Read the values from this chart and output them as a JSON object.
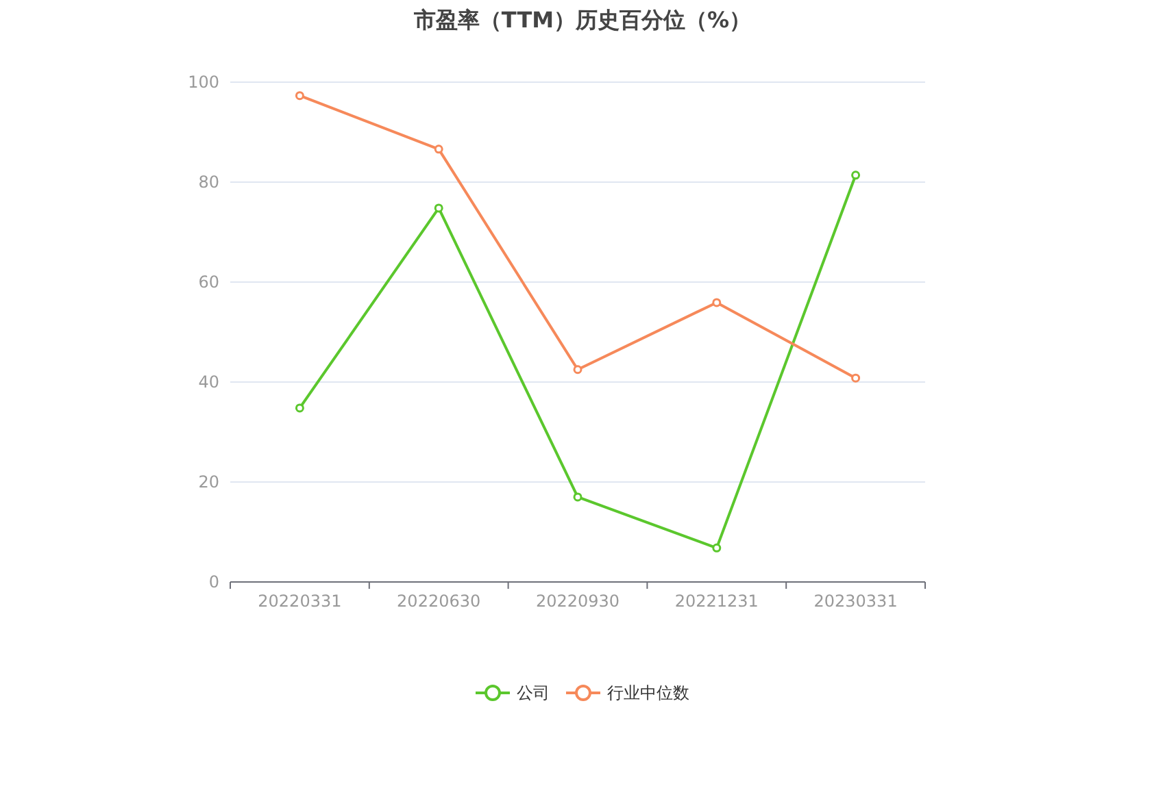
{
  "chart_data": {
    "type": "line",
    "title": "市盈率（TTM）历史百分位（%）",
    "categories": [
      "20220331",
      "20220630",
      "20220930",
      "20221231",
      "20230331"
    ],
    "series": [
      {
        "name": "公司",
        "color": "#5bc72d",
        "values": [
          34.8,
          74.8,
          17.0,
          6.8,
          81.4
        ]
      },
      {
        "name": "行业中位数",
        "color": "#f6895a",
        "values": [
          97.3,
          86.6,
          42.5,
          55.9,
          40.8
        ]
      }
    ],
    "ylim": [
      0,
      100
    ],
    "yticks": [
      0,
      20,
      40,
      60,
      80,
      100
    ],
    "grid": "y",
    "legend": "bottom",
    "marker": "circle",
    "line_style": "solid"
  }
}
